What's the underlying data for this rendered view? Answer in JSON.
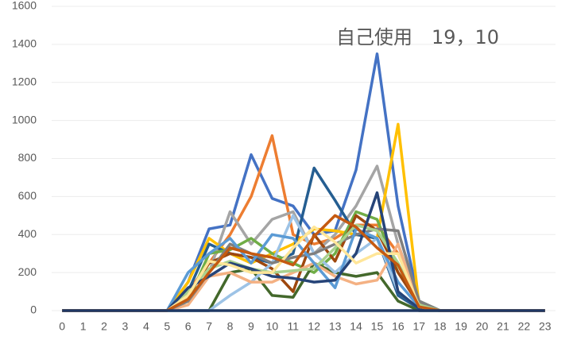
{
  "chart_data": {
    "type": "line",
    "annotation": "自己使用　19，10",
    "categories": [
      "0",
      "1",
      "2",
      "3",
      "4",
      "5",
      "6",
      "7",
      "8",
      "9",
      "10",
      "11",
      "12",
      "13",
      "14",
      "15",
      "16",
      "17",
      "18",
      "19",
      "20",
      "21",
      "22",
      "23"
    ],
    "ylim": [
      0,
      1600
    ],
    "yticks": [
      0,
      200,
      400,
      600,
      800,
      1000,
      1200,
      1400,
      1600
    ],
    "grid": true,
    "series": [
      {
        "color": "#4472c4",
        "values": [
          0,
          0,
          0,
          0,
          0,
          0,
          150,
          430,
          450,
          820,
          590,
          550,
          400,
          420,
          740,
          1350,
          550,
          50,
          0,
          0,
          0,
          0,
          0,
          0
        ]
      },
      {
        "color": "#ed7d31",
        "values": [
          0,
          0,
          0,
          0,
          0,
          0,
          100,
          250,
          400,
          600,
          920,
          400,
          350,
          380,
          450,
          450,
          300,
          30,
          0,
          0,
          0,
          0,
          0,
          0
        ]
      },
      {
        "color": "#a5a5a5",
        "values": [
          0,
          0,
          0,
          0,
          0,
          0,
          50,
          200,
          520,
          350,
          480,
          520,
          300,
          400,
          550,
          760,
          350,
          40,
          0,
          0,
          0,
          0,
          0,
          0
        ]
      },
      {
        "color": "#ffc000",
        "values": [
          0,
          0,
          0,
          0,
          0,
          0,
          150,
          380,
          300,
          250,
          300,
          350,
          430,
          420,
          400,
          380,
          980,
          30,
          0,
          0,
          0,
          0,
          0,
          0
        ]
      },
      {
        "color": "#255e91",
        "values": [
          0,
          0,
          0,
          0,
          0,
          0,
          100,
          350,
          300,
          280,
          250,
          300,
          750,
          580,
          400,
          380,
          80,
          10,
          0,
          0,
          0,
          0,
          0,
          0
        ]
      },
      {
        "color": "#70ad47",
        "values": [
          0,
          0,
          0,
          0,
          0,
          0,
          50,
          300,
          320,
          380,
          300,
          250,
          200,
          300,
          520,
          480,
          200,
          50,
          0,
          0,
          0,
          0,
          0,
          0
        ]
      },
      {
        "color": "#43682b",
        "values": [
          0,
          0,
          0,
          0,
          0,
          0,
          0,
          0,
          200,
          220,
          80,
          70,
          250,
          200,
          180,
          200,
          50,
          0,
          0,
          0,
          0,
          0,
          0,
          0
        ]
      },
      {
        "color": "#9e480e",
        "values": [
          0,
          0,
          0,
          0,
          0,
          0,
          80,
          250,
          300,
          280,
          220,
          100,
          400,
          260,
          500,
          420,
          200,
          30,
          0,
          0,
          0,
          0,
          0,
          0
        ]
      },
      {
        "color": "#9dc3e6",
        "values": [
          0,
          0,
          0,
          0,
          0,
          0,
          0,
          0,
          80,
          150,
          250,
          500,
          300,
          200,
          300,
          380,
          100,
          10,
          0,
          0,
          0,
          0,
          0,
          0
        ]
      },
      {
        "color": "#f4b183",
        "values": [
          0,
          0,
          0,
          0,
          0,
          0,
          30,
          180,
          200,
          150,
          150,
          200,
          250,
          180,
          140,
          160,
          350,
          20,
          0,
          0,
          0,
          0,
          0,
          0
        ]
      },
      {
        "color": "#7f7f7f",
        "values": [
          0,
          0,
          0,
          0,
          0,
          0,
          50,
          200,
          350,
          300,
          250,
          280,
          300,
          350,
          400,
          430,
          420,
          50,
          0,
          0,
          0,
          0,
          0,
          0
        ]
      },
      {
        "color": "#a9d18e",
        "values": [
          0,
          0,
          0,
          0,
          0,
          0,
          100,
          220,
          260,
          220,
          200,
          210,
          220,
          330,
          450,
          420,
          250,
          30,
          0,
          0,
          0,
          0,
          0,
          0
        ]
      },
      {
        "color": "#5b9bd5",
        "values": [
          0,
          0,
          0,
          0,
          0,
          0,
          200,
          300,
          380,
          250,
          400,
          380,
          250,
          120,
          430,
          380,
          150,
          20,
          0,
          0,
          0,
          0,
          0,
          0
        ]
      },
      {
        "color": "#264478",
        "values": [
          0,
          0,
          0,
          0,
          0,
          0,
          120,
          180,
          250,
          220,
          180,
          170,
          150,
          160,
          300,
          620,
          100,
          10,
          0,
          0,
          0,
          0,
          0,
          0
        ]
      },
      {
        "color": "#ffe699",
        "values": [
          0,
          0,
          0,
          0,
          0,
          0,
          80,
          260,
          240,
          200,
          200,
          330,
          440,
          360,
          250,
          300,
          300,
          20,
          0,
          0,
          0,
          0,
          0,
          0
        ]
      },
      {
        "color": "#c55a11",
        "values": [
          0,
          0,
          0,
          0,
          0,
          0,
          60,
          200,
          330,
          300,
          280,
          240,
          390,
          500,
          440,
          330,
          240,
          20,
          0,
          0,
          0,
          0,
          0,
          0
        ]
      },
      {
        "color": "#1f3864",
        "values": [
          0,
          0,
          0,
          0,
          0,
          0,
          0,
          0,
          0,
          0,
          0,
          0,
          0,
          0,
          0,
          0,
          0,
          0,
          0,
          0,
          0,
          0,
          0,
          0
        ]
      }
    ]
  }
}
